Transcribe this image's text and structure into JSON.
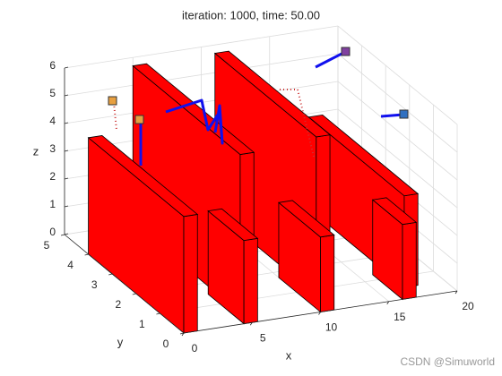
{
  "chart_data": {
    "type": "3d",
    "title": "iteration: 1000, time: 50.00",
    "xlabel": "x",
    "ylabel": "y",
    "zlabel": "z",
    "xlim": [
      0,
      20
    ],
    "ylim": [
      0,
      5
    ],
    "zlim": [
      0,
      6
    ],
    "xticks": [
      0,
      5,
      10,
      15,
      20
    ],
    "yticks": [
      0,
      1,
      2,
      3,
      4,
      5
    ],
    "zticks": [
      0,
      1,
      2,
      3,
      4,
      5,
      6
    ],
    "grid": true
  },
  "watermark": "CSDN @Simuworld"
}
